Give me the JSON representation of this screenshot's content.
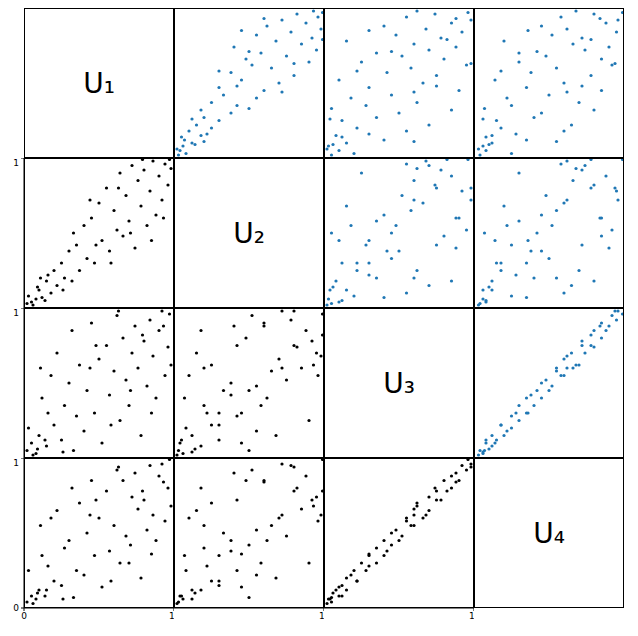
{
  "chart_data": {
    "type": "scatter_matrix",
    "xlim": [
      0,
      1
    ],
    "ylim": [
      0,
      1
    ],
    "xticks": [
      0,
      1
    ],
    "yticks": [
      0,
      1
    ],
    "panels": {
      "upper": {
        "color": "#1f77b4"
      },
      "lower": {
        "color": "#000000"
      }
    },
    "series": [
      {
        "name": "U₁",
        "values": [
          0.02,
          0.05,
          0.08,
          0.1,
          0.12,
          0.15,
          0.18,
          0.2,
          0.22,
          0.25,
          0.27,
          0.3,
          0.32,
          0.35,
          0.37,
          0.4,
          0.42,
          0.45,
          0.47,
          0.5,
          0.52,
          0.55,
          0.57,
          0.6,
          0.62,
          0.64,
          0.66,
          0.68,
          0.7,
          0.72,
          0.74,
          0.76,
          0.78,
          0.8,
          0.82,
          0.84,
          0.86,
          0.88,
          0.9,
          0.92,
          0.94,
          0.96,
          0.98,
          0.03,
          0.06,
          0.09,
          0.14,
          0.16,
          0.33,
          0.44,
          0.58,
          0.63,
          0.71,
          0.79,
          0.85,
          0.93,
          0.97,
          0.48,
          0.26,
          0.11
        ]
      },
      {
        "name": "U₂",
        "values": [
          0.03,
          0.04,
          0.06,
          0.12,
          0.07,
          0.18,
          0.1,
          0.25,
          0.15,
          0.3,
          0.2,
          0.38,
          0.18,
          0.42,
          0.25,
          0.55,
          0.33,
          0.6,
          0.3,
          0.7,
          0.45,
          0.8,
          0.38,
          0.65,
          0.52,
          0.9,
          0.48,
          0.75,
          0.58,
          0.95,
          0.4,
          0.85,
          0.68,
          0.92,
          0.55,
          0.78,
          0.98,
          0.62,
          0.88,
          0.72,
          0.96,
          0.82,
          0.93,
          0.08,
          0.02,
          0.14,
          0.05,
          0.22,
          0.5,
          0.72,
          0.3,
          0.8,
          0.5,
          0.99,
          0.45,
          0.6,
          0.99,
          0.42,
          0.12,
          0.2
        ]
      },
      {
        "name": "U₃",
        "values": [
          0.05,
          0.1,
          0.03,
          0.15,
          0.4,
          0.08,
          0.55,
          0.22,
          0.7,
          0.12,
          0.35,
          0.5,
          0.85,
          0.28,
          0.62,
          0.18,
          0.45,
          0.9,
          0.3,
          0.66,
          0.1,
          0.75,
          0.42,
          0.58,
          0.95,
          0.25,
          0.8,
          0.52,
          0.35,
          0.7,
          0.88,
          0.6,
          0.15,
          0.78,
          0.48,
          0.92,
          0.68,
          0.4,
          0.85,
          0.98,
          0.55,
          0.74,
          0.62,
          0.2,
          0.02,
          0.06,
          0.12,
          0.3,
          0.05,
          0.6,
          0.22,
          0.98,
          0.45,
          0.82,
          0.3,
          0.88,
          0.96,
          0.75,
          0.04,
          0.6
        ]
      },
      {
        "name": "U₄",
        "values": [
          0.04,
          0.08,
          0.06,
          0.12,
          0.35,
          0.12,
          0.6,
          0.18,
          0.65,
          0.15,
          0.4,
          0.45,
          0.8,
          0.25,
          0.7,
          0.22,
          0.5,
          0.85,
          0.35,
          0.6,
          0.14,
          0.78,
          0.38,
          0.55,
          0.92,
          0.3,
          0.85,
          0.48,
          0.3,
          0.74,
          0.9,
          0.66,
          0.2,
          0.72,
          0.52,
          0.95,
          0.62,
          0.45,
          0.88,
          0.96,
          0.58,
          0.8,
          0.68,
          0.25,
          0.03,
          0.1,
          0.08,
          0.28,
          0.07,
          0.62,
          0.18,
          0.94,
          0.42,
          0.78,
          0.36,
          0.84,
          0.99,
          0.72,
          0.06,
          0.55
        ]
      }
    ]
  }
}
